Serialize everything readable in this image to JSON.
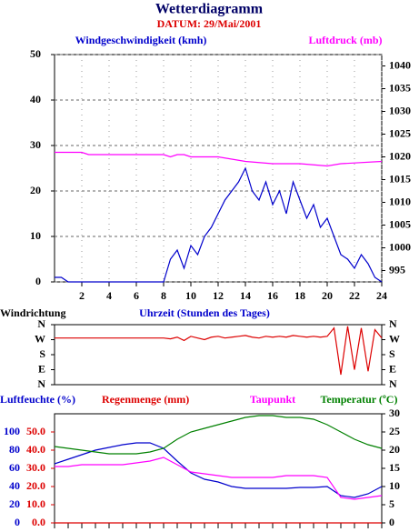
{
  "header": {
    "title": "Wetterdiagramm",
    "date": "DATUM: 29/Mai/2001"
  },
  "chart_data": [
    {
      "type": "line",
      "xlabel": "Uhrzeit (Stunden des Tages)",
      "xlim": [
        0,
        24
      ],
      "xticks": [
        2,
        4,
        6,
        8,
        10,
        12,
        14,
        16,
        18,
        20,
        22,
        24
      ],
      "ylim": [
        0,
        50
      ],
      "yticks": [
        0,
        10,
        20,
        30,
        40,
        50
      ],
      "y2lim": [
        992.5,
        1042.5
      ],
      "y2ticks": [
        995,
        1000,
        1005,
        1010,
        1015,
        1020,
        1025,
        1030,
        1035,
        1040
      ],
      "grid": true,
      "x": [
        0,
        0.5,
        1,
        1.5,
        2,
        2.5,
        3,
        3.5,
        4,
        4.5,
        5,
        5.5,
        6,
        6.5,
        7,
        7.5,
        8,
        8.5,
        9,
        9.5,
        10,
        10.5,
        11,
        11.5,
        12,
        12.5,
        13,
        13.5,
        14,
        14.5,
        15,
        15.5,
        16,
        16.5,
        17,
        17.5,
        18,
        18.5,
        19,
        19.5,
        20,
        20.5,
        21,
        21.5,
        22,
        22.5,
        23,
        23.5,
        24
      ],
      "series": [
        {
          "name": "Windgeschwindigkeit (kmh)",
          "color": "#0000cc",
          "values": [
            1,
            1,
            0,
            0,
            0,
            0,
            0,
            0,
            0,
            0,
            0,
            0,
            0,
            0,
            0,
            0,
            0,
            5,
            7,
            3,
            8,
            6,
            10,
            12,
            15,
            18,
            20,
            22,
            25,
            20,
            18,
            22,
            17,
            20,
            15,
            22,
            18,
            14,
            17,
            12,
            14,
            10,
            6,
            5,
            3,
            6,
            4,
            1,
            0
          ]
        },
        {
          "name": "Luftdruck (mb)",
          "color": "#ff00ff",
          "axis": "y2",
          "x": [
            0,
            2,
            2.5,
            8,
            8.5,
            9,
            9.5,
            10,
            12,
            13,
            14,
            16,
            18,
            20,
            21,
            24
          ],
          "values": [
            1021,
            1021,
            1020.5,
            1020.5,
            1020,
            1020.5,
            1020.5,
            1020,
            1020,
            1019.5,
            1019,
            1018.5,
            1018.5,
            1018,
            1018.5,
            1019
          ]
        }
      ]
    },
    {
      "type": "line",
      "title": "Windrichtung",
      "xlim": [
        0,
        24
      ],
      "ylim": [
        0,
        360
      ],
      "yticks": [
        {
          "value": 0,
          "label": "N"
        },
        {
          "value": 90,
          "label": "E"
        },
        {
          "value": 180,
          "label": "S"
        },
        {
          "value": 270,
          "label": "W"
        },
        {
          "value": 360,
          "label": "N"
        }
      ],
      "x": [
        0,
        0.5,
        1,
        1.5,
        2,
        2.5,
        3,
        3.5,
        4,
        4.5,
        5,
        5.5,
        6,
        6.5,
        7,
        7.5,
        8,
        8.5,
        9,
        9.5,
        10,
        10.5,
        11,
        11.5,
        12,
        12.5,
        13,
        13.5,
        14,
        14.5,
        15,
        15.5,
        16,
        16.5,
        17,
        17.5,
        18,
        18.5,
        19,
        19.5,
        20,
        20.5,
        21,
        21.5,
        22,
        22.5,
        23,
        23.5,
        24
      ],
      "series": [
        {
          "color": "#dd0000",
          "values": [
            280,
            280,
            280,
            280,
            280,
            280,
            280,
            280,
            280,
            280,
            280,
            280,
            280,
            280,
            280,
            280,
            280,
            275,
            285,
            265,
            290,
            280,
            270,
            285,
            290,
            280,
            285,
            290,
            295,
            285,
            280,
            290,
            285,
            290,
            285,
            295,
            290,
            285,
            290,
            285,
            290,
            340,
            60,
            350,
            90,
            340,
            80,
            330,
            280
          ]
        }
      ]
    },
    {
      "type": "line",
      "xlim": [
        0,
        24
      ],
      "ylim": [
        0,
        120
      ],
      "yticks": [
        0,
        20,
        40,
        60,
        80,
        100
      ],
      "y3lim": [
        0,
        60
      ],
      "y3ticks": [
        {
          "value": 0,
          "label": "0.0"
        },
        {
          "value": 10,
          "label": "10.0"
        },
        {
          "value": 20,
          "label": "20.0"
        },
        {
          "value": 30,
          "label": "30.0"
        },
        {
          "value": 40,
          "label": "40.0"
        },
        {
          "value": 50,
          "label": "50.0"
        }
      ],
      "y2lim": [
        0,
        30
      ],
      "y2ticks": [
        0,
        5,
        10,
        15,
        20,
        25,
        30
      ],
      "x": [
        0,
        1,
        2,
        3,
        4,
        5,
        6,
        7,
        8,
        9,
        10,
        11,
        12,
        13,
        14,
        15,
        16,
        17,
        18,
        19,
        20,
        21,
        22,
        23,
        24
      ],
      "series": [
        {
          "name": "Luftfeuchte (%)",
          "color": "#0000cc",
          "values": [
            65,
            70,
            75,
            80,
            83,
            86,
            88,
            88,
            82,
            68,
            55,
            48,
            45,
            40,
            38,
            38,
            38,
            38,
            39,
            39,
            40,
            30,
            28,
            32,
            40
          ]
        },
        {
          "name": "Regenmenge (mm)",
          "color": "#dd0000",
          "axis": "y3",
          "values": [
            0,
            0,
            0,
            0,
            0,
            0,
            0,
            0,
            0,
            0,
            0,
            0,
            0,
            0,
            0,
            0,
            0,
            0,
            0,
            0,
            0,
            0,
            0,
            0,
            0
          ]
        },
        {
          "name": "Taupunkt",
          "color": "#ff00ff",
          "axis": "y2",
          "values": [
            15.5,
            15.5,
            16,
            16,
            16,
            16,
            16.5,
            17,
            18,
            16,
            14,
            13.5,
            13,
            12.5,
            12.5,
            12.5,
            12.5,
            13,
            13,
            13,
            12.5,
            7,
            6.5,
            7,
            7.5
          ]
        },
        {
          "name": "Temperatur (ºC)",
          "color": "#008000",
          "axis": "y2",
          "values": [
            21,
            20.5,
            20,
            19.5,
            19,
            19,
            19,
            19.5,
            20.5,
            23,
            25,
            26,
            27,
            28,
            29,
            29.5,
            29.5,
            29,
            29,
            28.5,
            27,
            25,
            23,
            21.5,
            20.5
          ]
        }
      ]
    }
  ]
}
